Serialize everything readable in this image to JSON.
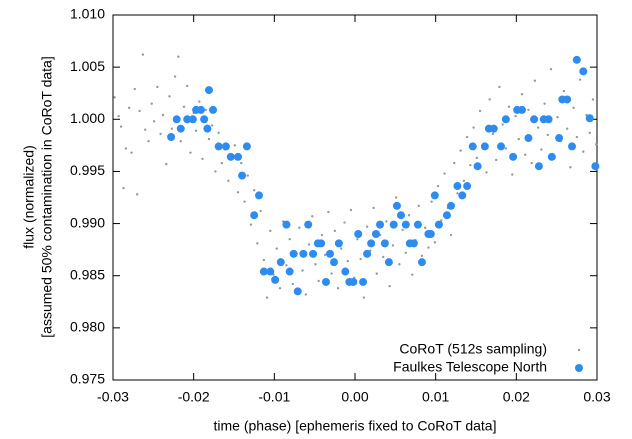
{
  "chart_data": {
    "type": "scatter",
    "xlabel": "time (phase) [ephemeris fixed to CoRoT data]",
    "ylabel": [
      "flux (normalized)",
      "[assumed 50% contamination in CoRoT data]"
    ],
    "xlim": [
      -0.03,
      0.03
    ],
    "xticks": [
      -0.03,
      -0.02,
      -0.01,
      {
        "value": 0,
        "label": "0.00"
      },
      0.01,
      0.02,
      0.03
    ],
    "ylim": [
      0.975,
      1.01
    ],
    "yticks": [
      0.975,
      {
        "value": 0.98,
        "label": "0.980"
      },
      0.985,
      {
        "value": 0.99,
        "label": "0.990"
      },
      0.995,
      {
        "value": 1,
        "label": "1.000"
      },
      1.005,
      {
        "value": 1.01,
        "label": "1.010"
      }
    ],
    "grid": false,
    "legend": "lower right",
    "series": [
      {
        "name": "CoRoT (512s sampling)",
        "color": "#999999",
        "x": [
          -0.0298,
          -0.0293,
          -0.029,
          -0.0287,
          -0.0284,
          -0.028,
          -0.0277,
          -0.0273,
          -0.027,
          -0.0267,
          -0.0263,
          -0.026,
          -0.0256,
          -0.0252,
          -0.0249,
          -0.0245,
          -0.0241,
          -0.0238,
          -0.0234,
          -0.023,
          -0.0227,
          -0.0223,
          -0.0219,
          -0.0216,
          -0.0212,
          -0.0208,
          -0.0204,
          -0.02,
          -0.0197,
          -0.0193,
          -0.0189,
          -0.0185,
          -0.0181,
          -0.0177,
          -0.0173,
          -0.0169,
          -0.0165,
          -0.0161,
          -0.0157,
          -0.0153,
          -0.0149,
          -0.0145,
          -0.0141,
          -0.0137,
          -0.0133,
          -0.0129,
          -0.0125,
          -0.0121,
          -0.0117,
          -0.0113,
          -0.0109,
          -0.0105,
          -0.0101,
          -0.0097,
          -0.0093,
          -0.0089,
          -0.0085,
          -0.0081,
          -0.0077,
          -0.0073,
          -0.0069,
          -0.0065,
          -0.0061,
          -0.0057,
          -0.0053,
          -0.0049,
          -0.0045,
          -0.0041,
          -0.0037,
          -0.0033,
          -0.0029,
          -0.0025,
          -0.0021,
          -0.0017,
          -0.0013,
          -0.0009,
          -0.0005,
          -0.0001,
          0.0003,
          0.0007,
          0.0011,
          0.0015,
          0.0019,
          0.0023,
          0.0027,
          0.0031,
          0.0035,
          0.0039,
          0.0043,
          0.0047,
          0.0051,
          0.0055,
          0.0059,
          0.0063,
          0.0067,
          0.0071,
          0.0075,
          0.0079,
          0.0083,
          0.0087,
          0.0091,
          0.0095,
          0.0099,
          0.0103,
          0.0107,
          0.0111,
          0.0115,
          0.0119,
          0.0123,
          0.0127,
          0.0131,
          0.0135,
          0.0139,
          0.0143,
          0.0147,
          0.0151,
          0.0155,
          0.0159,
          0.0163,
          0.0167,
          0.0171,
          0.0175,
          0.0179,
          0.0183,
          0.0187,
          0.0191,
          0.0195,
          0.0199,
          0.0203,
          0.0207,
          0.0211,
          0.0215,
          0.0219,
          0.0223,
          0.0227,
          0.0231,
          0.0235,
          0.0239,
          0.0243,
          0.0247,
          0.0251,
          0.0255,
          0.0259,
          0.0263,
          0.0267,
          0.0271,
          0.0275,
          0.0279,
          0.0283,
          0.0287,
          0.0291,
          0.0295,
          0.0299
        ],
        "values": [
          1.0021,
          1.0003,
          0.9993,
          0.9934,
          0.9972,
          1.0011,
          0.9968,
          1.0029,
          0.9928,
          1.0008,
          1.0062,
          0.999,
          0.9979,
          1.0015,
          0.9998,
          1.0031,
          0.9986,
          1.0004,
          0.9957,
          1.0022,
          0.9991,
          1.0041,
          1.006,
          0.9979,
          1.0012,
          1.0032,
          0.9968,
          1.0006,
          0.9989,
          1.0017,
          0.9962,
          1.0009,
          0.9981,
          0.9994,
          0.995,
          0.9987,
          0.9958,
          0.9971,
          0.9941,
          0.9966,
          0.9975,
          0.993,
          0.9958,
          0.9921,
          0.9946,
          0.9899,
          0.9932,
          0.9881,
          0.9912,
          0.9865,
          0.9829,
          0.9893,
          0.9851,
          0.9876,
          0.9838,
          0.9902,
          0.986,
          0.9885,
          0.9842,
          0.9871,
          0.9896,
          0.9855,
          0.9832,
          0.988,
          0.9907,
          0.9861,
          0.9845,
          0.9889,
          0.987,
          0.9911,
          0.9852,
          0.9893,
          0.9838,
          0.9876,
          0.9901,
          0.9864,
          0.9913,
          0.9848,
          0.9885,
          0.9866,
          0.9829,
          0.9897,
          0.9874,
          0.9915,
          0.9852,
          0.9889,
          0.9868,
          0.9902,
          0.984,
          0.9879,
          0.9925,
          0.9861,
          0.9894,
          0.9872,
          0.9908,
          0.9851,
          0.9884,
          0.9917,
          0.9869,
          0.9896,
          0.9877,
          0.9921,
          0.9882,
          0.9936,
          0.9903,
          0.9948,
          0.9915,
          0.9889,
          0.9958,
          0.9929,
          0.997,
          0.9941,
          0.9983,
          0.9956,
          0.9992,
          0.9963,
          1.0008,
          0.9974,
          0.9949,
          1.0019,
          0.9986,
          0.9961,
          1.0031,
          0.9995,
          0.9972,
          1.0012,
          0.9947,
          1.0003,
          0.9981,
          1.0024,
          0.9966,
          1.0009,
          0.9958,
          1.0037,
          0.9992,
          0.9971,
          1.0015,
          0.9985,
          1.0048,
          0.9963,
          1.0002,
          0.9979,
          1.0027,
          0.9991,
          0.9954,
          1.0011,
          0.9983,
          1.0038,
          0.9969,
          1.0004,
          0.9987,
          1.0019,
          0.9976
        ]
      },
      {
        "name": "Faulkes Telescope North",
        "color": "#2e8cf0",
        "x": [
          -0.0228,
          -0.0221,
          -0.0216,
          -0.0208,
          -0.0201,
          -0.0197,
          -0.0191,
          -0.0187,
          -0.0183,
          -0.0181,
          -0.0176,
          -0.0169,
          -0.016,
          -0.0154,
          -0.0145,
          -0.014,
          -0.0134,
          -0.0125,
          -0.0119,
          -0.0113,
          -0.0105,
          -0.0099,
          -0.0092,
          -0.0085,
          -0.0081,
          -0.0076,
          -0.0071,
          -0.0064,
          -0.0058,
          -0.0052,
          -0.0046,
          -0.0042,
          -0.0036,
          -0.0031,
          -0.0026,
          -0.002,
          -0.0012,
          -0.0007,
          -0.0002,
          0.0004,
          0.001,
          0.0015,
          0.002,
          0.0026,
          0.0031,
          0.0037,
          0.0042,
          0.0048,
          0.0052,
          0.0057,
          0.0063,
          0.0068,
          0.0073,
          0.0078,
          0.0083,
          0.0091,
          0.0094,
          0.0099,
          0.0104,
          0.0114,
          0.0119,
          0.0127,
          0.0133,
          0.0139,
          0.0146,
          0.0152,
          0.0161,
          0.0166,
          0.0172,
          0.0181,
          0.0187,
          0.0196,
          0.0201,
          0.0207,
          0.0215,
          0.0222,
          0.0228,
          0.0234,
          0.024,
          0.0244,
          0.0253,
          0.0257,
          0.0263,
          0.0269,
          0.0275,
          0.0283,
          0.0291,
          0.0298
        ],
        "values": [
          0.9983,
          1.0,
          0.9991,
          1.0,
          1.0,
          1.0009,
          1.0009,
          1.0,
          0.9991,
          1.0028,
          1.0009,
          0.9974,
          0.9974,
          0.9964,
          0.9964,
          0.9946,
          0.9974,
          0.9908,
          0.9927,
          0.9854,
          0.9854,
          0.9846,
          0.9863,
          0.9899,
          0.9854,
          0.9871,
          0.9835,
          0.9871,
          0.9899,
          0.9871,
          0.9881,
          0.9881,
          0.9844,
          0.9871,
          0.9863,
          0.9881,
          0.9854,
          0.9844,
          0.9844,
          0.989,
          0.9844,
          0.9871,
          0.9881,
          0.989,
          0.9899,
          0.9881,
          0.9863,
          0.9899,
          0.9917,
          0.9908,
          0.9899,
          0.9881,
          0.9881,
          0.9899,
          0.9863,
          0.989,
          0.989,
          0.9927,
          0.9899,
          0.9908,
          0.9917,
          0.9936,
          0.9927,
          0.9936,
          0.9974,
          0.9955,
          0.9974,
          0.9991,
          0.9991,
          0.9974,
          1.0,
          0.9964,
          1.0009,
          1.0009,
          0.9982,
          1.0,
          0.9955,
          1.0,
          1.0,
          0.9964,
          0.9982,
          1.0019,
          1.0019,
          0.9974,
          1.0057,
          1.0046,
          1.0001,
          0.9955
        ]
      }
    ]
  }
}
